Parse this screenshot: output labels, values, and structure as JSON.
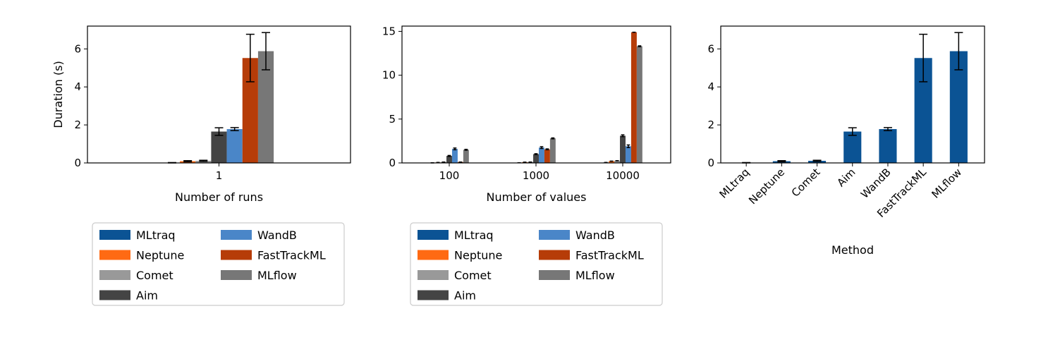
{
  "colors": {
    "MLtraq": "#0b5394",
    "Neptune": "#ff6a13",
    "Comet": "#999999",
    "Aim": "#444444",
    "WandB": "#4a86c8",
    "FastTrackML": "#b63c08",
    "MLflow": "#777777"
  },
  "chart_data": [
    {
      "type": "bar",
      "xlabel": "Number of runs",
      "ylabel": "Duration (s)",
      "categories": [
        "1"
      ],
      "ylim": [
        0,
        7.2
      ],
      "yticks": [
        0,
        2,
        4,
        6
      ],
      "legend": "below",
      "series": [
        {
          "name": "MLtraq",
          "values": [
            0.01
          ],
          "err": [
            0.01
          ]
        },
        {
          "name": "Neptune",
          "values": [
            0.09
          ],
          "err": [
            0.03
          ]
        },
        {
          "name": "Comet",
          "values": [
            0.11
          ],
          "err": [
            0.03
          ]
        },
        {
          "name": "Aim",
          "values": [
            1.65
          ],
          "err": [
            0.2
          ]
        },
        {
          "name": "WandB",
          "values": [
            1.78
          ],
          "err": [
            0.08
          ]
        },
        {
          "name": "FastTrackML",
          "values": [
            5.52
          ],
          "err": [
            1.25
          ]
        },
        {
          "name": "MLflow",
          "values": [
            5.88
          ],
          "err": [
            0.98
          ]
        }
      ]
    },
    {
      "type": "bar",
      "xlabel": "Number of values",
      "ylabel": "",
      "categories": [
        "100",
        "1000",
        "10000"
      ],
      "ylim": [
        0,
        15.6
      ],
      "yticks": [
        0,
        5,
        10,
        15
      ],
      "legend": "below",
      "series": [
        {
          "name": "MLtraq",
          "values": [
            0.01,
            0.02,
            0.05
          ],
          "err": [
            0.0,
            0.0,
            0.0
          ]
        },
        {
          "name": "Neptune",
          "values": [
            0.05,
            0.08,
            0.2
          ],
          "err": [
            0.0,
            0.0,
            0.0
          ]
        },
        {
          "name": "Comet",
          "values": [
            0.1,
            0.1,
            0.25
          ],
          "err": [
            0.0,
            0.0,
            0.0
          ]
        },
        {
          "name": "Aim",
          "values": [
            0.8,
            1.0,
            3.1
          ],
          "err": [
            0.05,
            0.05,
            0.1
          ]
        },
        {
          "name": "WandB",
          "values": [
            1.6,
            1.75,
            1.9
          ],
          "err": [
            0.1,
            0.1,
            0.15
          ]
        },
        {
          "name": "FastTrackML",
          "values": [
            0.1,
            1.55,
            14.9
          ],
          "err": [
            0.0,
            0.05,
            0.0
          ]
        },
        {
          "name": "MLflow",
          "values": [
            1.5,
            2.8,
            13.3
          ],
          "err": [
            0.05,
            0.05,
            0.05
          ]
        }
      ]
    },
    {
      "type": "bar",
      "xlabel": "Method",
      "ylabel": "",
      "categories": [
        "MLtraq",
        "Neptune",
        "Comet",
        "Aim",
        "WandB",
        "FastTrackML",
        "MLflow"
      ],
      "ylim": [
        0,
        7.2
      ],
      "yticks": [
        0,
        2,
        4,
        6
      ],
      "values": [
        0.01,
        0.09,
        0.11,
        1.65,
        1.78,
        5.52,
        5.88
      ],
      "err": [
        0.01,
        0.03,
        0.03,
        0.2,
        0.08,
        1.25,
        0.98
      ],
      "bar_color": "#0b5394"
    }
  ]
}
